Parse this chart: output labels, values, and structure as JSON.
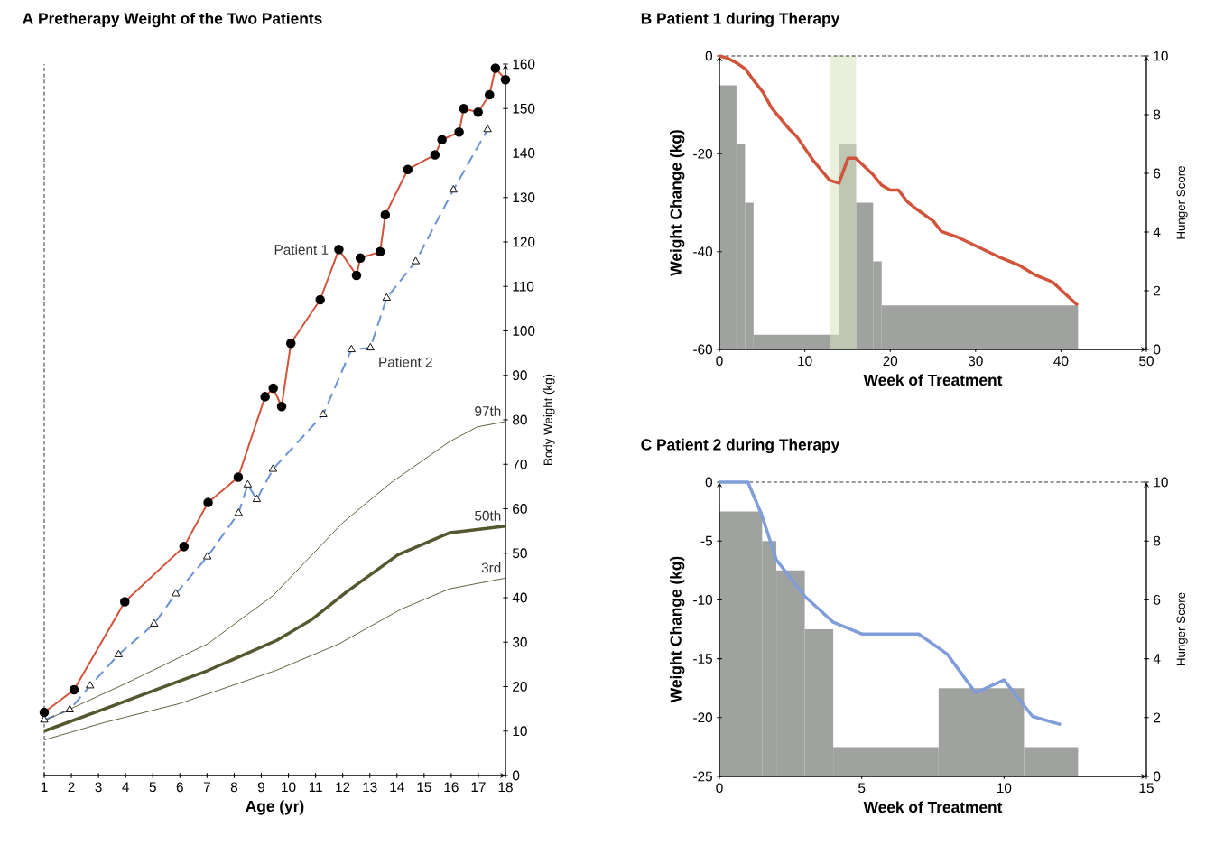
{
  "chart_data": [
    {
      "type": "line",
      "title": "A Pretherapy Weight of the Two Patients",
      "xlabel": "Age (yr)",
      "ylabel": "Body Weight (kg)",
      "xlim": [
        1,
        18
      ],
      "ylim": [
        0,
        160
      ],
      "xticks": [
        1,
        2,
        3,
        4,
        5,
        6,
        7,
        8,
        9,
        10,
        11,
        12,
        13,
        14,
        15,
        16,
        17,
        18
      ],
      "yticks": [
        0,
        10,
        20,
        30,
        40,
        50,
        60,
        70,
        80,
        90,
        100,
        110,
        120,
        130,
        140,
        150,
        160
      ],
      "ref_lines": [
        {
          "axis": "x",
          "value": 1,
          "line_style": "dashed"
        }
      ],
      "series": [
        {
          "name": "Patient 1",
          "color": "#d0533a",
          "marker": "circle",
          "line_style": "solid",
          "x": [
            1,
            2.1,
            3.97,
            6.15,
            7.04,
            8.15,
            9.14,
            9.44,
            9.75,
            10.09,
            11.17,
            11.86,
            12.51,
            12.65,
            13.38,
            13.57,
            14.4,
            15.4,
            15.66,
            16.29,
            16.46,
            16.99,
            17.41,
            17.63,
            18
          ],
          "values": [
            14.2,
            19.3,
            39.1,
            51.5,
            61.4,
            67.1,
            85.2,
            87.1,
            83.0,
            97.2,
            107.0,
            118.3,
            112.5,
            116.4,
            117.8,
            126.1,
            136.3,
            139.6,
            143.0,
            144.7,
            150.0,
            149.2,
            153.1,
            159.1,
            156.5
          ]
        },
        {
          "name": "Patient 2",
          "color": "#6a93d4",
          "marker": "triangle",
          "line_style": "dashed",
          "x": [
            1,
            1.94,
            2.69,
            3.74,
            5.05,
            5.85,
            7.01,
            8.16,
            8.5,
            8.83,
            9.43,
            11.28,
            12.32,
            13.02,
            13.62,
            14.69,
            16.08,
            17.34
          ],
          "values": [
            12.5,
            14.8,
            20.2,
            27.2,
            34.1,
            40.9,
            49.2,
            59.0,
            65.4,
            62.1,
            68.9,
            81.2,
            95.8,
            96.2,
            107.4,
            115.6,
            131.7,
            145.3
          ]
        },
        {
          "name": "97th",
          "color": "#55572f",
          "marker": "none",
          "line_style": "solid",
          "x": [
            1,
            3.97,
            7.02,
            9.44,
            11.99,
            13.77,
            15.94,
            16.96,
            18
          ],
          "values": [
            12.3,
            20.6,
            29.6,
            40.5,
            56.8,
            65.8,
            75.1,
            78.4,
            79.6
          ]
        },
        {
          "name": "50th",
          "color": "#55572f",
          "marker": "none",
          "line_style": "solid",
          "x": [
            1,
            3.97,
            7.02,
            9.57,
            10.84,
            12.12,
            14.03,
            15.94,
            18
          ],
          "values": [
            10.0,
            16.7,
            23.6,
            30.4,
            35.0,
            41.2,
            49.6,
            54.6,
            56.1
          ]
        },
        {
          "name": "3rd",
          "color": "#55572f",
          "marker": "none",
          "line_style": "solid",
          "x": [
            1,
            3.2,
            6.0,
            9.57,
            11.86,
            14.15,
            15.94,
            18
          ],
          "values": [
            8.0,
            11.9,
            16.2,
            23.7,
            29.6,
            37.4,
            42.0,
            44.4
          ]
        }
      ]
    },
    {
      "type": "line",
      "title": "B Patient 1 during Therapy",
      "xlabel": "Week of Treatment",
      "ylabel": "Weight Change (kg)",
      "y2label": "Hunger Score",
      "xlim": [
        0,
        50
      ],
      "ylim": [
        -60,
        0
      ],
      "y2lim": [
        0,
        10
      ],
      "xticks": [
        0,
        10,
        20,
        30,
        40,
        50
      ],
      "yticks": [
        -60,
        -40,
        -20,
        0
      ],
      "y2ticks": [
        0,
        2,
        4,
        6,
        8,
        10
      ],
      "ref_lines": [
        {
          "axis": "y",
          "value": 0,
          "line_style": "dashed"
        }
      ],
      "bands": [
        {
          "axis": "x",
          "from": 13,
          "to": 16,
          "color": "#d9e4bf"
        }
      ],
      "series": [
        {
          "type": "histogram",
          "axis": "y2",
          "color": "#a0a2a0",
          "bins": [
            0,
            2,
            3,
            4,
            14,
            16,
            18,
            19,
            42
          ],
          "values": [
            9,
            7,
            5,
            0.5,
            7,
            5,
            3,
            1.5
          ]
        },
        {
          "type": "line",
          "color": "#d0533a",
          "x": [
            0,
            1,
            2.1,
            3.07,
            4.1,
            5.1,
            6.1,
            8.1,
            9.07,
            11.0,
            12.9,
            14.0,
            15.07,
            15.96,
            18.0,
            18.98,
            20.0,
            20.98,
            22.0,
            23.0,
            25.07,
            26.0,
            27.96,
            33.0,
            35.0,
            37.0,
            39.0,
            41.96
          ],
          "values": [
            0,
            -0.5,
            -1.5,
            -2.7,
            -5.2,
            -7.4,
            -10.6,
            -14.8,
            -16.5,
            -21.4,
            -25.4,
            -26.0,
            -20.9,
            -20.9,
            -24.3,
            -26.4,
            -27.4,
            -27.4,
            -29.8,
            -31.2,
            -33.8,
            -35.9,
            -37.1,
            -41.3,
            -42.7,
            -44.8,
            -46.2,
            -51.0
          ]
        }
      ]
    },
    {
      "type": "line",
      "title": "C Patient 2 during Therapy",
      "xlabel": "Week of Treatment",
      "ylabel": "Weight Change (kg)",
      "y2label": "Hunger Score",
      "xlim": [
        0,
        15
      ],
      "ylim": [
        -25,
        0
      ],
      "y2lim": [
        0,
        10
      ],
      "xticks": [
        0,
        5,
        10,
        15
      ],
      "yticks": [
        -25,
        -20,
        -15,
        -10,
        -5,
        0
      ],
      "y2ticks": [
        0,
        2,
        4,
        6,
        8,
        10
      ],
      "ref_lines": [
        {
          "axis": "y",
          "value": 0,
          "line_style": "dashed"
        }
      ],
      "series": [
        {
          "type": "histogram",
          "axis": "y2",
          "color": "#a0a2a0",
          "bins": [
            0,
            1.5,
            2,
            3,
            4,
            7.7,
            10.7,
            12.6
          ],
          "values": [
            9,
            8,
            7,
            5,
            1,
            3,
            1
          ]
        },
        {
          "type": "line",
          "color": "#7f9dd8",
          "x": [
            0,
            1.0,
            1.49,
            2.0,
            3.0,
            4.0,
            5.0,
            7.0,
            8.0,
            9.0,
            10.0,
            11.0,
            12.0
          ],
          "values": [
            0,
            0,
            -2.8,
            -6.6,
            -9.7,
            -11.9,
            -12.9,
            -12.9,
            -14.6,
            -17.9,
            -16.8,
            -19.9,
            -20.6
          ]
        }
      ]
    }
  ]
}
